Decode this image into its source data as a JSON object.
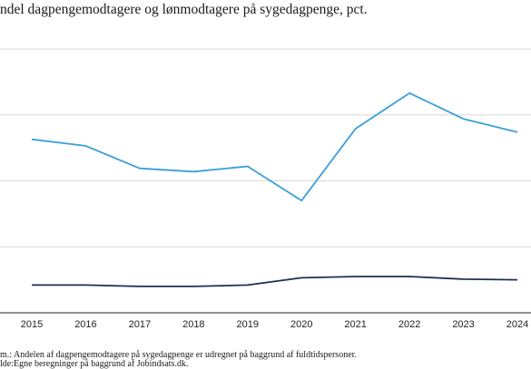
{
  "chart_data": {
    "type": "line",
    "title": "ndel dagpengemodtagere og lønmodtagere på sygedagpenge, pct.",
    "x": [
      2015,
      2016,
      2017,
      2018,
      2019,
      2020,
      2021,
      2022,
      2023,
      2024
    ],
    "x_tick_labels": [
      "2015",
      "2016",
      "2017",
      "2018",
      "2019",
      "2020",
      "2021",
      "2022",
      "2023",
      "2024"
    ],
    "series": [
      {
        "color": "#3a9fd9",
        "values": [
          2.63,
          2.53,
          2.19,
          2.14,
          2.22,
          1.7,
          2.79,
          3.33,
          2.94,
          2.74
        ]
      },
      {
        "color": "#1c2f57",
        "values": [
          0.42,
          0.42,
          0.4,
          0.4,
          0.42,
          0.53,
          0.55,
          0.55,
          0.51,
          0.5
        ]
      }
    ],
    "ylim": [
      0,
      4
    ],
    "gridlines_at": [
      1,
      2,
      3,
      4
    ],
    "grid": true,
    "legend": "none",
    "xlabel": "",
    "ylabel": ""
  },
  "footer": {
    "note": "m.: Andelen af dagpengemodtagere på sygedagpenge er udregnet på baggrund af fuldtidspersoner.",
    "source": "lde:Egne beregninger på baggrund af Jobindsats.dk."
  }
}
